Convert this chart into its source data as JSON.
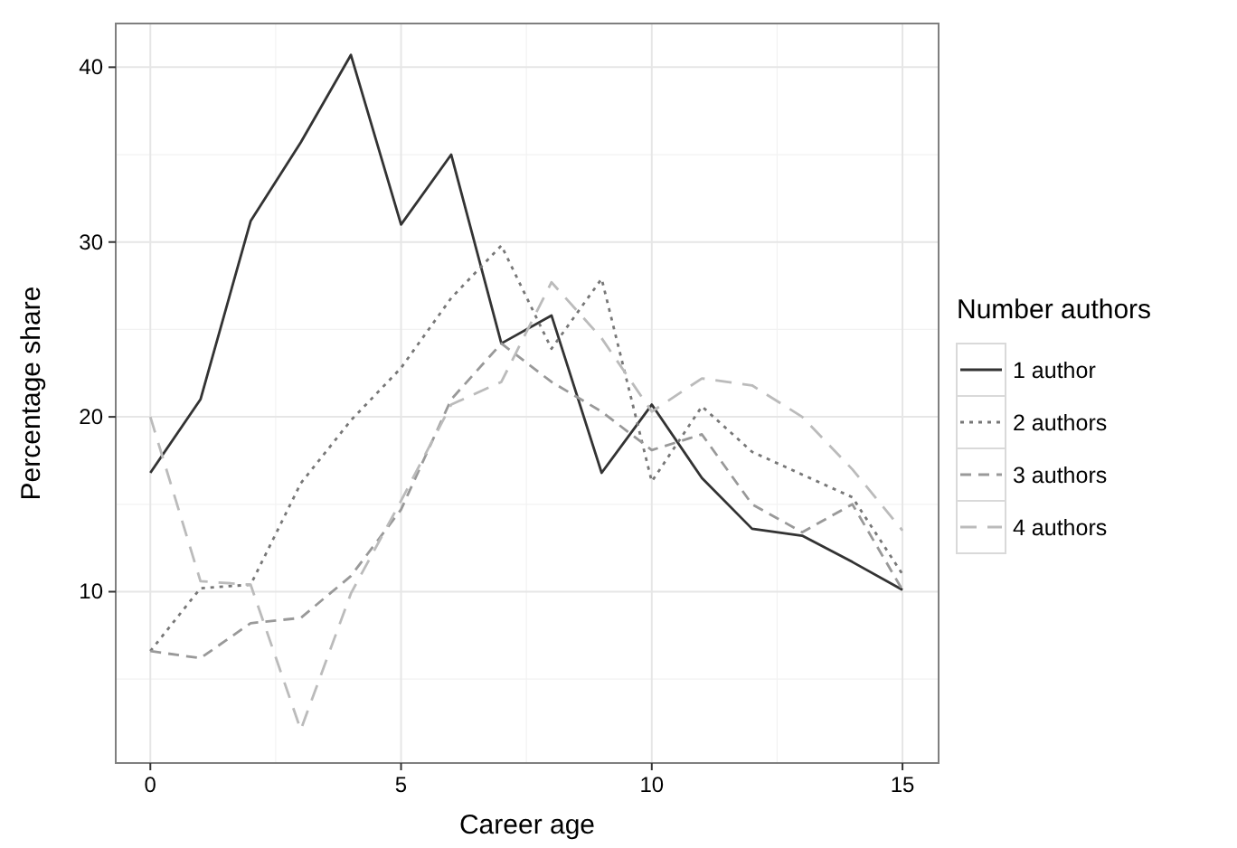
{
  "chart_data": {
    "type": "line",
    "xlabel": "Career age",
    "ylabel": "Percentage share",
    "legend_title": "Number authors",
    "legend": "right",
    "grid": true,
    "x": [
      0,
      1,
      2,
      3,
      4,
      5,
      6,
      7,
      8,
      9,
      10,
      11,
      12,
      13,
      14,
      15
    ],
    "xlim": [
      -0.69,
      15.72
    ],
    "xticks": [
      0,
      5,
      10,
      15
    ],
    "ylim": [
      0.2,
      42.5
    ],
    "yticks": [
      10,
      20,
      30,
      40
    ],
    "series": [
      {
        "name": "1 author",
        "color": "#333333",
        "line_style": "solid",
        "values": [
          16.8,
          21,
          31.2,
          35.7,
          40.7,
          31,
          35,
          24.2,
          25.8,
          16.8,
          20.7,
          16.5,
          13.6,
          13.2,
          11.7,
          10.1
        ]
      },
      {
        "name": "2 authors",
        "color": "#777777",
        "line_style": "dotted",
        "values": [
          6.6,
          10.2,
          10.4,
          16.2,
          19.8,
          22.8,
          26.8,
          29.8,
          23.9,
          27.9,
          16.3,
          20.6,
          18,
          16.7,
          15.4,
          11
        ]
      },
      {
        "name": "3 authors",
        "color": "#999999",
        "line_style": "dashed",
        "values": [
          6.6,
          6.2,
          8.2,
          8.5,
          10.9,
          14.7,
          21,
          24.2,
          22,
          20.3,
          18.1,
          19,
          15,
          13.4,
          15,
          10.1
        ]
      },
      {
        "name": "4 authors",
        "color": "#bbbbbb",
        "line_style": "longdash",
        "values": [
          20,
          10.6,
          10.4,
          2.1,
          9.9,
          15.2,
          20.7,
          22,
          27.7,
          24.5,
          20.3,
          22.2,
          21.8,
          20,
          17,
          13.5
        ]
      }
    ]
  }
}
